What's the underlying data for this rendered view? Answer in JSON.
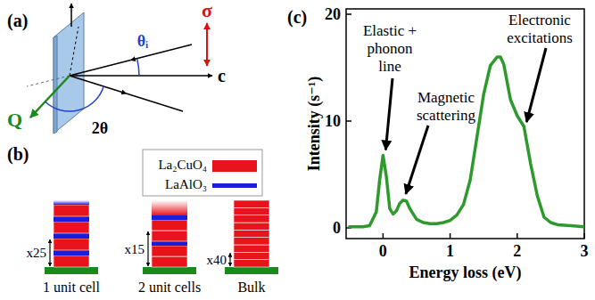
{
  "panels": {
    "a": {
      "letter": "(a)",
      "labels": {
        "theta_i": "θᵢ",
        "sigma": "σ",
        "c_axis": "c",
        "q": "Q",
        "two_theta": "2θ"
      }
    },
    "b": {
      "letter": "(b)",
      "legend": [
        {
          "name": "La₂CuO₄",
          "color": "#e8141b"
        },
        {
          "name": "LaAlO₃",
          "color": "#1c1cdc"
        }
      ],
      "stacks": [
        {
          "label": "1 unit cell",
          "repeat": "x25"
        },
        {
          "label": "2 unit cells",
          "repeat": "x15"
        },
        {
          "label": "Bulk",
          "repeat": "x40"
        }
      ]
    },
    "c": {
      "letter": "(c)"
    }
  },
  "chart_data": {
    "type": "line",
    "xlabel": "Energy loss (eV)",
    "ylabel": "Intensity (s⁻¹)",
    "x": [
      -0.5,
      -0.3,
      -0.2,
      -0.1,
      -0.05,
      0,
      0.05,
      0.1,
      0.15,
      0.2,
      0.25,
      0.3,
      0.35,
      0.4,
      0.5,
      0.6,
      0.7,
      0.8,
      0.9,
      1.0,
      1.1,
      1.2,
      1.3,
      1.4,
      1.5,
      1.6,
      1.7,
      1.75,
      1.8,
      1.9,
      2.0,
      2.1,
      2.2,
      2.3,
      2.4,
      2.5,
      2.6,
      2.8,
      3.0
    ],
    "values": [
      0.1,
      0.1,
      0.2,
      1.5,
      4.5,
      6.8,
      4.8,
      1.8,
      1.3,
      1.6,
      2.3,
      2.6,
      2.5,
      1.8,
      0.8,
      0.5,
      0.4,
      0.4,
      0.5,
      0.7,
      1.2,
      2.2,
      4.5,
      8.5,
      12.5,
      15.2,
      16.0,
      16.0,
      15.3,
      12.0,
      10.5,
      9.5,
      6.0,
      3.0,
      1.0,
      0.5,
      0.3,
      0.2,
      0.1
    ],
    "color": "#2e9a2e",
    "xlim": [
      -0.55,
      3
    ],
    "xticks": [
      0,
      1,
      2,
      3
    ],
    "ylim": [
      -1,
      20.5
    ],
    "yticks": [
      0,
      10,
      20
    ],
    "grid": false,
    "annotations": [
      {
        "text": [
          "Elastic +",
          "phonon",
          "line"
        ]
      },
      {
        "text": [
          "Magnetic",
          "scattering"
        ]
      },
      {
        "text": [
          "Electronic",
          "excitations"
        ]
      }
    ]
  }
}
